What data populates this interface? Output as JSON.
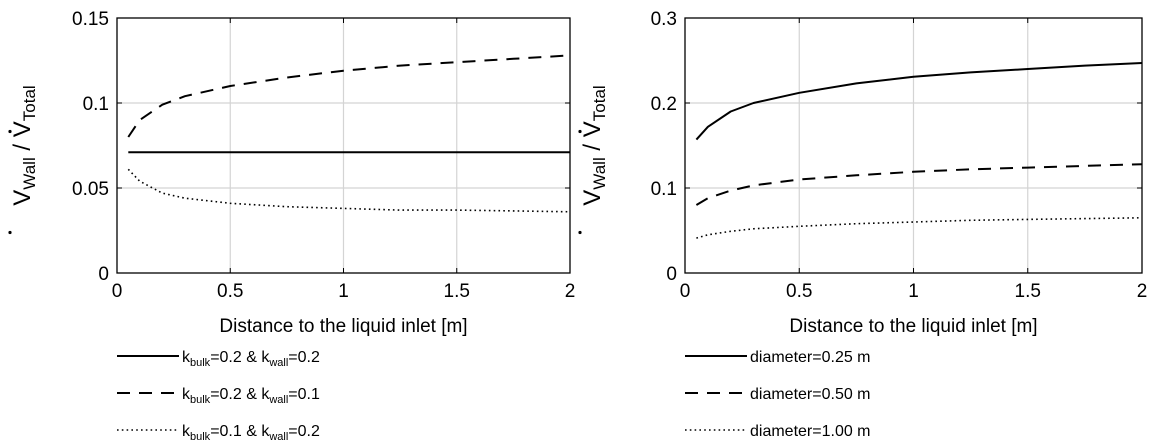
{
  "chart_data": [
    {
      "type": "line",
      "xlabel": "Distance to the liquid inlet [m]",
      "ylabel": {
        "v": "V",
        "sub1": "Wall",
        "slash": " / ",
        "sub2": "Total"
      },
      "xlim": [
        0,
        2
      ],
      "ylim": [
        0,
        0.15
      ],
      "xticks": [
        0,
        0.5,
        1,
        1.5,
        2
      ],
      "xtick_labels": [
        "0",
        "0.5",
        "1",
        "1.5",
        "2"
      ],
      "yticks": [
        0,
        0.05,
        0.1,
        0.15
      ],
      "ytick_labels": [
        "0",
        "0.05",
        "0.1",
        "0.15"
      ],
      "grid": true,
      "legend_position": "below",
      "series": [
        {
          "style": "solid",
          "label": {
            "k1": "k",
            "s1": "bulk",
            "t1": "=0.2 & ",
            "k2": "k",
            "s2": "wall",
            "t2": "=0.2"
          },
          "x": [
            0.05,
            0.1,
            0.2,
            0.3,
            0.5,
            0.75,
            1.0,
            1.25,
            1.5,
            1.75,
            2.0
          ],
          "y": [
            0.071,
            0.071,
            0.071,
            0.071,
            0.071,
            0.071,
            0.071,
            0.071,
            0.071,
            0.071,
            0.071
          ]
        },
        {
          "style": "dashed",
          "label": {
            "k1": "k",
            "s1": "bulk",
            "t1": "=0.2 & ",
            "k2": "k",
            "s2": "wall",
            "t2": "=0.1"
          },
          "x": [
            0.05,
            0.1,
            0.2,
            0.3,
            0.5,
            0.75,
            1.0,
            1.25,
            1.5,
            1.75,
            2.0
          ],
          "y": [
            0.08,
            0.09,
            0.099,
            0.104,
            0.11,
            0.115,
            0.119,
            0.122,
            0.124,
            0.126,
            0.128
          ]
        },
        {
          "style": "dotted",
          "label": {
            "k1": "k",
            "s1": "bulk",
            "t1": "=0.1 & ",
            "k2": "k",
            "s2": "wall",
            "t2": "=0.2"
          },
          "x": [
            0.05,
            0.1,
            0.2,
            0.3,
            0.5,
            0.75,
            1.0,
            1.25,
            1.5,
            1.75,
            2.0
          ],
          "y": [
            0.061,
            0.054,
            0.047,
            0.044,
            0.041,
            0.039,
            0.038,
            0.037,
            0.037,
            0.0365,
            0.036
          ]
        }
      ]
    },
    {
      "type": "line",
      "xlabel": "Distance to the liquid inlet [m]",
      "ylabel": {
        "v": "V",
        "sub1": "Wall",
        "slash": " / ",
        "sub2": "Total"
      },
      "xlim": [
        0,
        2
      ],
      "ylim": [
        0,
        0.3
      ],
      "xticks": [
        0,
        0.5,
        1,
        1.5,
        2
      ],
      "xtick_labels": [
        "0",
        "0.5",
        "1",
        "1.5",
        "2"
      ],
      "yticks": [
        0,
        0.1,
        0.2,
        0.3
      ],
      "ytick_labels": [
        "0",
        "0.1",
        "0.2",
        "0.3"
      ],
      "grid": true,
      "legend_position": "below",
      "series": [
        {
          "style": "solid",
          "label": {
            "t1": "diameter=0.25 m"
          },
          "x": [
            0.05,
            0.1,
            0.2,
            0.3,
            0.5,
            0.75,
            1.0,
            1.25,
            1.5,
            1.75,
            2.0
          ],
          "y": [
            0.157,
            0.172,
            0.19,
            0.2,
            0.212,
            0.223,
            0.231,
            0.236,
            0.24,
            0.244,
            0.247
          ]
        },
        {
          "style": "dashed",
          "label": {
            "t1": "diameter=0.50 m"
          },
          "x": [
            0.05,
            0.1,
            0.2,
            0.3,
            0.5,
            0.75,
            1.0,
            1.25,
            1.5,
            1.75,
            2.0
          ],
          "y": [
            0.08,
            0.088,
            0.097,
            0.103,
            0.11,
            0.115,
            0.119,
            0.122,
            0.124,
            0.126,
            0.128
          ]
        },
        {
          "style": "dotted",
          "label": {
            "t1": "diameter=1.00 m"
          },
          "x": [
            0.05,
            0.1,
            0.2,
            0.3,
            0.5,
            0.75,
            1.0,
            1.25,
            1.5,
            1.75,
            2.0
          ],
          "y": [
            0.041,
            0.045,
            0.049,
            0.052,
            0.055,
            0.058,
            0.06,
            0.062,
            0.063,
            0.064,
            0.065
          ]
        }
      ]
    }
  ]
}
